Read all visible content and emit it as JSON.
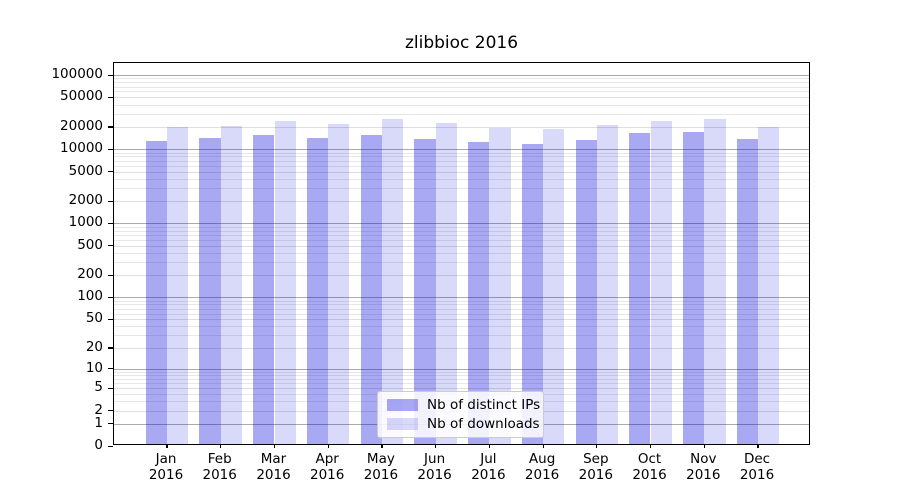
{
  "title": "zlibbioc 2016",
  "legend": {
    "items": [
      {
        "label": "Nb of distinct IPs",
        "color": "rgba(0,0,220,0.34)"
      },
      {
        "label": "Nb of downloads",
        "color": "rgba(0,0,220,0.15)"
      }
    ]
  },
  "axis": {
    "ytick_labels": [
      "100000",
      "50000",
      "20000",
      "10000",
      "5000",
      "2000",
      "1000",
      "500",
      "200",
      "100",
      "50",
      "20",
      "10",
      "5",
      "2",
      "1",
      "0"
    ]
  },
  "colors": {
    "major_grid": "#ababab",
    "minor_grid": "#e7e7e7",
    "labeled_grid": "#dedede",
    "spine": "#000000"
  },
  "chart_data": {
    "type": "bar",
    "title": "zlibbioc 2016",
    "scale": "log1p",
    "grid": "on",
    "legend_position": "lower center",
    "categories": [
      "Jan 2016",
      "Feb 2016",
      "Mar 2016",
      "Apr 2016",
      "May 2016",
      "Jun 2016",
      "Jul 2016",
      "Aug 2016",
      "Sep 2016",
      "Oct 2016",
      "Nov 2016",
      "Dec 2016"
    ],
    "series": [
      {
        "name": "Nb of distinct IPs",
        "color": "rgba(0,0,220,0.34)",
        "values": [
          12300,
          13200,
          14500,
          13300,
          14500,
          13100,
          11700,
          11100,
          12700,
          15500,
          16000,
          12900
        ]
      },
      {
        "name": "Nb of downloads",
        "color": "rgba(0,0,220,0.15)",
        "values": [
          18700,
          19600,
          22500,
          20300,
          24000,
          21300,
          18100,
          17800,
          20000,
          22900,
          24300,
          18700
        ]
      }
    ],
    "yticks": [
      0,
      1,
      2,
      5,
      10,
      20,
      50,
      100,
      200,
      500,
      1000,
      2000,
      5000,
      10000,
      20000,
      50000,
      100000
    ],
    "ylim": [
      0,
      145000
    ],
    "xlabel": "",
    "ylabel": ""
  }
}
